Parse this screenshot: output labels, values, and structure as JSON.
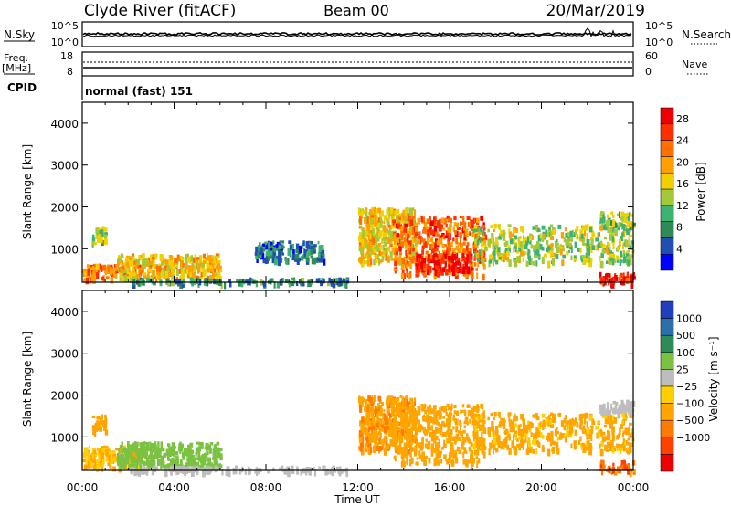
{
  "header": {
    "station": "Clyde River (fitACF)",
    "beam": "Beam 00",
    "date": "20/Mar/2019"
  },
  "top_panels": {
    "nsky_label": "N.Sky",
    "nsky_ticks": [
      "10^5",
      "10^0"
    ],
    "nsearch_label": "N.Search",
    "nsearch_ticks": [
      "10^5",
      "10^0"
    ],
    "freq_label_1": "Freq.",
    "freq_label_2": "[MHz]",
    "freq_ticks": [
      "18",
      "8"
    ],
    "nave_label": "Nave",
    "nave_ticks": [
      "60",
      "0"
    ],
    "cpid_label": "CPID",
    "cpid_text": "normal (fast) 151"
  },
  "colors": {
    "power_scale": [
      "#0000ff",
      "#1f4fb0",
      "#2e8b57",
      "#3cb371",
      "#a3c93a",
      "#f0d000",
      "#ffa000",
      "#ff7000",
      "#ff3000",
      "#ee0000"
    ],
    "velocity_scale": [
      "#1f3fbf",
      "#2d6fa8",
      "#2e8b57",
      "#7cc242",
      "#bdbdbd",
      "#ffd000",
      "#ffa500",
      "#ff7a00",
      "#ff4000",
      "#ee0000"
    ]
  },
  "chart_data": [
    {
      "type": "heatmap",
      "name": "power",
      "ylabel": "Slant Range [km]",
      "ylim": [
        200,
        4500
      ],
      "yticks": [
        "1000",
        "2000",
        "3000",
        "4000"
      ],
      "xlim": [
        0,
        24
      ],
      "colorbar_label": "Power [dB]",
      "colorbar_ticks": [
        "4",
        "8",
        "12",
        "16",
        "20",
        "24",
        "28"
      ],
      "colorbar_range": [
        0,
        30
      ],
      "patches": [
        {
          "t0": 0.0,
          "t1": 2.5,
          "r0": 300,
          "r1": 650,
          "v": 22
        },
        {
          "t0": 0.4,
          "t1": 1.0,
          "r0": 1150,
          "r1": 1550,
          "v": 13
        },
        {
          "t0": 1.5,
          "t1": 6.0,
          "r0": 300,
          "r1": 900,
          "v": 18
        },
        {
          "t0": 2.0,
          "t1": 11.5,
          "r0": 200,
          "r1": 320,
          "v": 8
        },
        {
          "t0": 7.5,
          "t1": 10.5,
          "r0": 750,
          "r1": 1200,
          "v": 7
        },
        {
          "t0": 12.0,
          "t1": 14.5,
          "r0": 700,
          "r1": 2000,
          "v": 17
        },
        {
          "t0": 13.5,
          "t1": 17.5,
          "r0": 400,
          "r1": 1800,
          "v": 23
        },
        {
          "t0": 14.5,
          "t1": 17.0,
          "r0": 500,
          "r1": 900,
          "v": 28
        },
        {
          "t0": 17.0,
          "t1": 24.0,
          "r0": 700,
          "r1": 1600,
          "v": 14
        },
        {
          "t0": 22.5,
          "t1": 24.0,
          "r0": 1600,
          "r1": 1900,
          "v": 13
        },
        {
          "t0": 22.5,
          "t1": 24.0,
          "r0": 200,
          "r1": 450,
          "v": 27
        }
      ]
    },
    {
      "type": "heatmap",
      "name": "velocity",
      "ylabel": "Slant Range [km]",
      "ylim": [
        200,
        4500
      ],
      "yticks": [
        "1000",
        "2000",
        "3000",
        "4000"
      ],
      "xlim": [
        0,
        24
      ],
      "xticks": [
        "00:00",
        "04:00",
        "08:00",
        "12:00",
        "16:00",
        "20:00",
        "00:00"
      ],
      "xlabel": "Time UT",
      "colorbar_label": "Velocity [m s⁻¹]",
      "colorbar_ticks": [
        "1000",
        "500",
        "100",
        "25",
        "−25",
        "−100",
        "−500",
        "−1000"
      ],
      "patches": [
        {
          "t0": 0.0,
          "t1": 2.5,
          "r0": 300,
          "r1": 800,
          "v": -100
        },
        {
          "t0": 0.4,
          "t1": 1.0,
          "r0": 1150,
          "r1": 1550,
          "v": -300
        },
        {
          "t0": 1.5,
          "t1": 6.0,
          "r0": 300,
          "r1": 900,
          "v": 60
        },
        {
          "t0": 2.0,
          "t1": 11.5,
          "r0": 200,
          "r1": 320,
          "v": 0
        },
        {
          "t0": 12.0,
          "t1": 14.5,
          "r0": 700,
          "r1": 2000,
          "v": -400
        },
        {
          "t0": 13.5,
          "t1": 17.5,
          "r0": 400,
          "r1": 1800,
          "v": -300
        },
        {
          "t0": 17.0,
          "t1": 24.0,
          "r0": 700,
          "r1": 1600,
          "v": -150
        },
        {
          "t0": 22.5,
          "t1": 24.0,
          "r0": 1600,
          "r1": 1900,
          "v": 0
        },
        {
          "t0": 22.5,
          "t1": 24.0,
          "r0": 200,
          "r1": 450,
          "v": -800
        }
      ]
    }
  ]
}
